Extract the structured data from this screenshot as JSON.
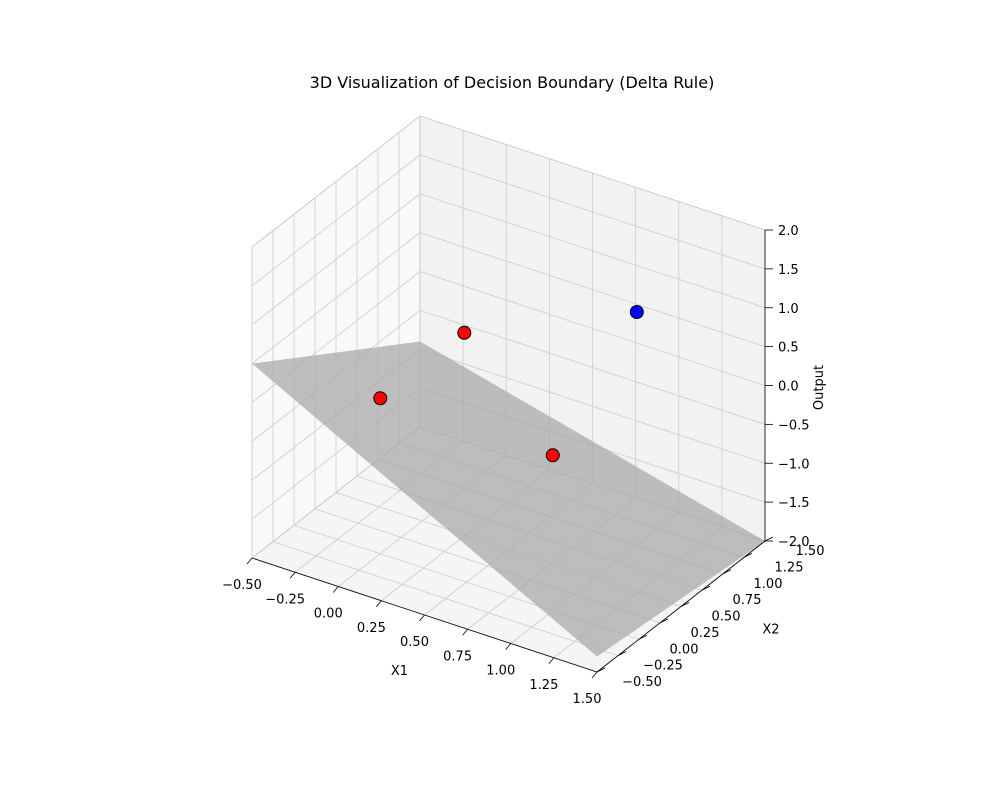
{
  "chart_data": {
    "type": "scatter3d",
    "title": "3D Visualization of Decision Boundary (Delta Rule)",
    "xlabel": "X1",
    "ylabel": "X2",
    "zlabel": "Output",
    "xlim": [
      -0.5,
      1.5
    ],
    "ylim": [
      -0.5,
      1.5
    ],
    "zlim": [
      -2.0,
      2.0
    ],
    "x_ticks": [
      "−0.50",
      "−0.25",
      "0.00",
      "0.25",
      "0.50",
      "0.75",
      "1.00",
      "1.25",
      "1.50"
    ],
    "y_ticks": [
      "−0.50",
      "−0.25",
      "0.00",
      "0.25",
      "0.50",
      "0.75",
      "1.00",
      "1.25",
      "1.50"
    ],
    "z_ticks": [
      "−2.0",
      "−1.5",
      "−1.0",
      "−0.5",
      "0.0",
      "0.5",
      "1.0",
      "1.5",
      "2.0"
    ],
    "grid": true,
    "colors": {
      "class_0": "#ff0000",
      "class_1": "#0000ff",
      "plane": "#a9a9a9",
      "pane_left": "#f9f9f9",
      "pane_back": "#f2f2f2",
      "pane_floor": "#f5f5f5",
      "grid": "#cccccc"
    },
    "points": [
      {
        "x": 0,
        "y": 0,
        "z": 0,
        "class": 0
      },
      {
        "x": 0,
        "y": 1,
        "z": 0,
        "class": 0
      },
      {
        "x": 1,
        "y": 0,
        "z": 0,
        "class": 0
      },
      {
        "x": 1,
        "y": 1,
        "z": 1,
        "class": 1
      }
    ],
    "decision_plane": {
      "x1": [
        -0.5,
        1.5
      ],
      "x2": [
        -0.5,
        1.5
      ],
      "z_corners": {
        "x1_low_x2_low": 0.5,
        "x1_high_x2_low": -1.8,
        "x1_low_x2_high": -0.9,
        "x1_high_x2_high": -2.0
      },
      "opacity": 0.75
    }
  }
}
